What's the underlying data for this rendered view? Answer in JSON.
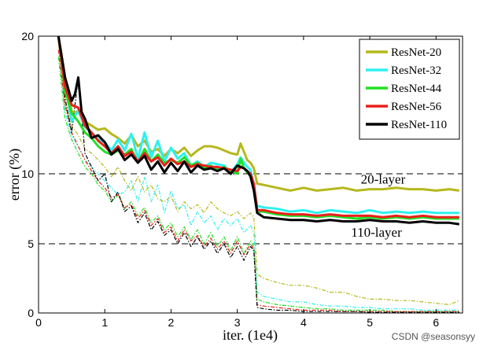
{
  "chart_data": {
    "type": "line",
    "xlabel": "iter. (1e4)",
    "ylabel": "error (%)",
    "xlim": [
      0,
      6.4
    ],
    "ylim": [
      0,
      20
    ],
    "xticks": [
      0,
      1,
      2,
      3,
      4,
      5,
      6
    ],
    "yticks": [
      0,
      5,
      10,
      20
    ],
    "ytick_labels": [
      "0",
      "5",
      "10",
      "20"
    ],
    "grid": "horizontal dashed at 5, 10, 20",
    "legend_placement": "top-right",
    "annotations": [
      {
        "text": "20-layer",
        "x": 5.2,
        "y": 9.3
      },
      {
        "text": "110-layer",
        "x": 5.1,
        "y": 5.5
      }
    ],
    "watermark": "CSDN @seasonsyy",
    "series": [
      {
        "name": "ResNet-20",
        "color": "#b5b81d",
        "style": "solid",
        "x": [
          0.3,
          0.4,
          0.5,
          0.6,
          0.7,
          0.8,
          0.9,
          1.0,
          1.1,
          1.2,
          1.3,
          1.4,
          1.5,
          1.6,
          1.7,
          1.8,
          1.9,
          2.0,
          2.1,
          2.2,
          2.3,
          2.4,
          2.5,
          2.6,
          2.7,
          2.8,
          2.9,
          3.0,
          3.05,
          3.1,
          3.15,
          3.2,
          3.25,
          3.3,
          3.4,
          3.6,
          3.8,
          4.0,
          4.2,
          4.4,
          4.6,
          4.8,
          5.0,
          5.2,
          5.4,
          5.6,
          5.8,
          6.0,
          6.2,
          6.35
        ],
        "y": [
          20,
          17,
          14.5,
          14.5,
          13.8,
          13.5,
          13.2,
          13.3,
          12.9,
          12.6,
          12.2,
          12.8,
          12.0,
          12.4,
          11.6,
          11.8,
          11.3,
          11.8,
          11.5,
          11.9,
          11.3,
          11.7,
          12.0,
          12.0,
          11.9,
          11.7,
          11.5,
          11.4,
          12.2,
          11.6,
          11.0,
          10.8,
          10.4,
          9.3,
          9.2,
          9.0,
          8.8,
          9.0,
          8.8,
          8.9,
          9.0,
          8.8,
          8.9,
          8.9,
          9.0,
          8.9,
          8.9,
          8.8,
          8.9,
          8.8
        ]
      },
      {
        "name": "ResNet-32",
        "color": "#2ff0f0",
        "style": "solid",
        "x": [
          0.3,
          0.4,
          0.5,
          0.6,
          0.7,
          0.8,
          0.9,
          1.0,
          1.1,
          1.2,
          1.3,
          1.4,
          1.5,
          1.6,
          1.7,
          1.8,
          1.9,
          2.0,
          2.1,
          2.2,
          2.3,
          2.4,
          2.5,
          2.6,
          2.7,
          2.8,
          2.9,
          3.0,
          3.05,
          3.1,
          3.15,
          3.2,
          3.25,
          3.3,
          3.4,
          3.6,
          3.8,
          4.0,
          4.2,
          4.4,
          4.6,
          4.8,
          5.0,
          5.2,
          5.4,
          5.6,
          5.8,
          6.0,
          6.2,
          6.35
        ],
        "y": [
          20,
          16.5,
          13.8,
          14.6,
          13.4,
          13.0,
          12.5,
          12.3,
          11.7,
          12.5,
          11.7,
          12.9,
          11.1,
          13.0,
          11.2,
          12.4,
          10.9,
          11.9,
          11.1,
          11.5,
          10.6,
          10.9,
          10.5,
          10.8,
          10.7,
          10.6,
          10.1,
          10.7,
          11.2,
          10.8,
          10.5,
          10.3,
          9.2,
          7.7,
          7.6,
          7.5,
          7.3,
          7.4,
          7.2,
          7.4,
          7.3,
          7.2,
          7.4,
          7.2,
          7.3,
          7.2,
          7.3,
          7.2,
          7.2,
          7.2
        ]
      },
      {
        "name": "ResNet-44",
        "color": "#22e022",
        "style": "solid",
        "x": [
          0.3,
          0.4,
          0.5,
          0.6,
          0.7,
          0.8,
          0.9,
          1.0,
          1.1,
          1.2,
          1.3,
          1.4,
          1.5,
          1.6,
          1.7,
          1.8,
          1.9,
          2.0,
          2.1,
          2.2,
          2.3,
          2.4,
          2.5,
          2.6,
          2.7,
          2.8,
          2.9,
          3.0,
          3.05,
          3.1,
          3.15,
          3.2,
          3.25,
          3.3,
          3.4,
          3.6,
          3.8,
          4.0,
          4.2,
          4.4,
          4.6,
          4.8,
          5.0,
          5.2,
          5.4,
          5.6,
          5.8,
          6.0,
          6.2,
          6.35
        ],
        "y": [
          20,
          16.0,
          14.4,
          13.8,
          13.0,
          12.6,
          12.0,
          11.6,
          11.4,
          11.7,
          11.4,
          11.8,
          10.8,
          11.8,
          10.9,
          11.4,
          10.8,
          11.0,
          10.8,
          11.2,
          10.6,
          10.8,
          10.4,
          10.6,
          10.3,
          10.5,
          10.2,
          10.0,
          11.1,
          10.4,
          10.1,
          10.0,
          9.0,
          7.3,
          7.3,
          7.1,
          7.0,
          7.0,
          6.9,
          7.0,
          6.9,
          6.8,
          6.9,
          6.8,
          6.9,
          6.8,
          6.9,
          6.8,
          6.8,
          6.8
        ]
      },
      {
        "name": "ResNet-56",
        "color": "#e8201c",
        "style": "solid",
        "x": [
          0.3,
          0.4,
          0.5,
          0.6,
          0.7,
          0.8,
          0.9,
          1.0,
          1.1,
          1.2,
          1.3,
          1.4,
          1.5,
          1.6,
          1.7,
          1.8,
          1.9,
          2.0,
          2.1,
          2.2,
          2.3,
          2.4,
          2.5,
          2.6,
          2.7,
          2.8,
          2.9,
          3.0,
          3.05,
          3.1,
          3.15,
          3.2,
          3.25,
          3.3,
          3.4,
          3.6,
          3.8,
          4.0,
          4.2,
          4.4,
          4.6,
          4.8,
          5.0,
          5.2,
          5.4,
          5.6,
          5.8,
          6.0,
          6.2,
          6.35
        ],
        "y": [
          20,
          16.3,
          15.0,
          14.8,
          13.5,
          13.0,
          12.4,
          12.0,
          11.5,
          12.0,
          11.3,
          11.6,
          10.9,
          11.5,
          10.9,
          11.2,
          10.6,
          11.1,
          10.7,
          10.9,
          10.5,
          10.7,
          10.6,
          10.5,
          10.5,
          10.4,
          10.3,
          10.2,
          10.5,
          10.4,
          10.2,
          10.0,
          9.3,
          7.4,
          7.4,
          7.2,
          7.1,
          7.1,
          7.0,
          7.1,
          7.0,
          7.0,
          7.0,
          6.9,
          7.0,
          6.9,
          7.0,
          6.9,
          6.9,
          6.9
        ]
      },
      {
        "name": "ResNet-110",
        "color": "#000000",
        "style": "solid",
        "x": [
          0.3,
          0.4,
          0.5,
          0.55,
          0.6,
          0.65,
          0.7,
          0.8,
          0.9,
          1.0,
          1.1,
          1.2,
          1.3,
          1.4,
          1.5,
          1.6,
          1.7,
          1.8,
          1.9,
          2.0,
          2.1,
          2.2,
          2.3,
          2.4,
          2.5,
          2.6,
          2.7,
          2.8,
          2.9,
          3.0,
          3.05,
          3.1,
          3.15,
          3.2,
          3.25,
          3.3,
          3.4,
          3.6,
          3.8,
          4.0,
          4.2,
          4.4,
          4.6,
          4.8,
          5.0,
          5.2,
          5.4,
          5.6,
          5.8,
          6.0,
          6.2,
          6.35
        ],
        "y": [
          20,
          17.0,
          15.3,
          15.8,
          17.0,
          14.5,
          14.0,
          12.6,
          12.8,
          12.3,
          11.4,
          11.8,
          11.0,
          11.4,
          10.8,
          11.3,
          10.3,
          10.9,
          10.1,
          10.8,
          10.2,
          10.9,
          10.1,
          10.6,
          10.3,
          10.4,
          10.2,
          10.4,
          10.0,
          10.6,
          10.5,
          10.4,
          10.2,
          9.8,
          8.8,
          7.2,
          6.9,
          6.8,
          6.7,
          6.7,
          6.6,
          6.7,
          6.6,
          6.6,
          6.7,
          6.6,
          6.6,
          6.5,
          6.6,
          6.5,
          6.5,
          6.4
        ]
      },
      {
        "name": "",
        "color": "#b5b81d",
        "style": "dashdot",
        "x": [
          0.3,
          0.4,
          0.5,
          0.6,
          0.7,
          0.8,
          0.9,
          1.0,
          1.1,
          1.2,
          1.3,
          1.4,
          1.5,
          1.6,
          1.7,
          1.8,
          1.9,
          2.0,
          2.1,
          2.2,
          2.3,
          2.4,
          2.5,
          2.6,
          2.7,
          2.8,
          2.9,
          3.0,
          3.1,
          3.2,
          3.25,
          3.3,
          3.4,
          3.6,
          3.8,
          4.0,
          4.2,
          4.4,
          4.6,
          4.8,
          5.0,
          5.2,
          5.4,
          5.6,
          5.8,
          6.0,
          6.2,
          6.35
        ],
        "y": [
          19.5,
          15.0,
          13.5,
          12.8,
          11.8,
          11.5,
          11.0,
          10.5,
          9.8,
          10.5,
          9.5,
          8.8,
          9.8,
          8.7,
          9.2,
          8.2,
          8.0,
          8.4,
          7.3,
          8.0,
          7.5,
          7.8,
          7.2,
          8.0,
          7.5,
          7.2,
          7.0,
          7.3,
          6.8,
          7.2,
          6.9,
          2.8,
          2.5,
          2.2,
          2.0,
          2.0,
          1.8,
          1.5,
          1.5,
          1.2,
          1.0,
          1.0,
          0.9,
          0.9,
          0.8,
          0.7,
          0.6,
          0.9
        ]
      },
      {
        "name": "",
        "color": "#2ff0f0",
        "style": "dashdot",
        "x": [
          0.3,
          0.4,
          0.5,
          0.6,
          0.7,
          0.8,
          0.9,
          1.0,
          1.1,
          1.2,
          1.3,
          1.4,
          1.5,
          1.6,
          1.7,
          1.8,
          1.9,
          2.0,
          2.1,
          2.2,
          2.3,
          2.4,
          2.5,
          2.6,
          2.7,
          2.8,
          2.9,
          3.0,
          3.1,
          3.2,
          3.25,
          3.3,
          3.4,
          3.6,
          3.8,
          4.0,
          4.2,
          4.4,
          4.6,
          4.8,
          5.0,
          5.2,
          5.4,
          5.6,
          5.8,
          6.0,
          6.2,
          6.35
        ],
        "y": [
          19.0,
          14.5,
          12.8,
          12.0,
          11.0,
          10.5,
          10.0,
          9.5,
          9.0,
          8.5,
          8.7,
          9.5,
          8.0,
          9.8,
          8.0,
          9.2,
          7.2,
          8.8,
          7.5,
          7.8,
          6.3,
          7.3,
          6.5,
          7.0,
          6.0,
          6.8,
          6.3,
          6.8,
          5.8,
          6.3,
          5.8,
          1.5,
          1.2,
          1.0,
          0.8,
          0.8,
          0.6,
          0.5,
          0.5,
          0.4,
          0.4,
          0.3,
          0.3,
          0.3,
          0.2,
          0.2,
          0.2,
          0.2
        ]
      },
      {
        "name": "",
        "color": "#22e022",
        "style": "dashdot",
        "x": [
          0.3,
          0.4,
          0.5,
          0.6,
          0.7,
          0.8,
          0.9,
          1.0,
          1.1,
          1.2,
          1.3,
          1.4,
          1.5,
          1.6,
          1.7,
          1.8,
          1.9,
          2.0,
          2.1,
          2.2,
          2.3,
          2.4,
          2.5,
          2.6,
          2.7,
          2.8,
          2.9,
          3.0,
          3.1,
          3.2,
          3.25,
          3.3,
          3.4,
          3.6,
          3.8,
          4.0,
          4.2,
          4.4,
          4.6,
          4.8,
          5.0,
          5.2,
          5.4,
          5.6,
          5.8,
          6.0,
          6.2,
          6.35
        ],
        "y": [
          18.5,
          14.0,
          12.5,
          11.5,
          10.5,
          10.0,
          9.2,
          8.8,
          8.0,
          8.5,
          7.5,
          8.0,
          7.0,
          7.6,
          6.5,
          7.0,
          6.0,
          6.5,
          5.5,
          6.2,
          5.3,
          6.0,
          5.0,
          5.8,
          4.8,
          5.5,
          4.5,
          5.5,
          4.3,
          5.2,
          4.8,
          1.0,
          0.8,
          0.6,
          0.5,
          0.4,
          0.3,
          0.3,
          0.2,
          0.2,
          0.2,
          0.2,
          0.1,
          0.1,
          0.1,
          0.1,
          0.1,
          0.1
        ]
      },
      {
        "name": "",
        "color": "#e8201c",
        "style": "dashdot",
        "x": [
          0.3,
          0.4,
          0.5,
          0.6,
          0.7,
          0.8,
          0.9,
          1.0,
          1.1,
          1.2,
          1.3,
          1.4,
          1.5,
          1.6,
          1.7,
          1.8,
          1.9,
          2.0,
          2.1,
          2.2,
          2.3,
          2.4,
          2.5,
          2.6,
          2.7,
          2.8,
          2.9,
          3.0,
          3.1,
          3.2,
          3.25,
          3.3,
          3.4,
          3.6,
          3.8,
          4.0,
          4.2,
          4.4,
          4.6,
          4.8,
          5.0,
          5.2,
          5.4,
          5.6,
          5.8,
          6.0,
          6.2,
          6.35
        ],
        "y": [
          19.0,
          15.0,
          13.0,
          12.0,
          11.0,
          10.2,
          9.5,
          9.0,
          8.3,
          8.5,
          7.6,
          7.8,
          6.8,
          7.4,
          6.3,
          6.8,
          5.8,
          6.2,
          5.2,
          6.0,
          5.2,
          5.6,
          4.8,
          5.4,
          4.6,
          5.2,
          4.3,
          5.2,
          4.2,
          5.0,
          4.6,
          0.6,
          0.5,
          0.4,
          0.3,
          0.2,
          0.2,
          0.2,
          0.1,
          0.1,
          0.1,
          0.1,
          0.1,
          0.1,
          0.1,
          0.1,
          0.1,
          0.1
        ]
      },
      {
        "name": "",
        "color": "#000000",
        "style": "dashdot",
        "x": [
          0.3,
          0.4,
          0.5,
          0.6,
          0.7,
          0.8,
          0.9,
          1.0,
          1.1,
          1.2,
          1.3,
          1.4,
          1.5,
          1.6,
          1.7,
          1.8,
          1.9,
          2.0,
          2.1,
          2.2,
          2.3,
          2.4,
          2.5,
          2.6,
          2.7,
          2.8,
          2.9,
          3.0,
          3.1,
          3.2,
          3.25,
          3.3,
          3.4,
          3.6,
          3.8,
          4.0,
          4.2,
          4.4,
          4.6,
          4.8,
          5.0,
          5.2,
          5.4,
          5.6,
          5.8,
          6.0,
          6.2,
          6.35
        ],
        "y": [
          20.0,
          15.5,
          13.0,
          17.0,
          11.5,
          10.5,
          9.5,
          10.0,
          8.0,
          8.7,
          7.3,
          7.7,
          6.5,
          7.2,
          6.0,
          6.6,
          5.6,
          6.0,
          5.0,
          5.8,
          4.8,
          5.5,
          4.6,
          5.2,
          4.3,
          5.0,
          4.0,
          4.8,
          3.8,
          4.8,
          4.5,
          0.4,
          0.3,
          0.2,
          0.2,
          0.1,
          0.1,
          0.1,
          0.1,
          0.1,
          0.05,
          0.05,
          0.05,
          0.05,
          0.05,
          0.05,
          0.05,
          0.05
        ]
      }
    ]
  }
}
